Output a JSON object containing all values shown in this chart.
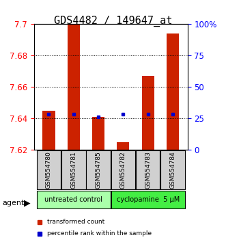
{
  "title": "GDS4482 / 149647_at",
  "samples": [
    "GSM554780",
    "GSM554781",
    "GSM554785",
    "GSM554782",
    "GSM554783",
    "GSM554784"
  ],
  "groups": [
    "untreated control",
    "untreated control",
    "untreated control",
    "cyclopamine  5 μM",
    "cyclopamine  5 μM",
    "cyclopamine  5 μM"
  ],
  "group_colors": [
    "#90ee90",
    "#90ee90",
    "#90ee90",
    "#32cd32",
    "#32cd32",
    "#32cd32"
  ],
  "red_values": [
    7.645,
    7.7,
    7.641,
    7.625,
    7.667,
    7.694
  ],
  "blue_values": [
    7.643,
    7.643,
    7.641,
    7.643,
    7.643,
    7.643
  ],
  "ymin": 7.62,
  "ymax": 7.7,
  "yticks": [
    7.62,
    7.64,
    7.66,
    7.68,
    7.7
  ],
  "ytick_labels": [
    "7.62",
    "7.64",
    "7.66",
    "7.68",
    "7.7"
  ],
  "right_yticks": [
    0,
    25,
    50,
    75,
    100
  ],
  "right_ytick_labels": [
    "0",
    "25",
    "50",
    "75",
    "100%"
  ],
  "bar_color": "#cc2200",
  "dot_color": "#0000cc",
  "bar_width": 0.5,
  "grid_color": "#000000",
  "agent_label": "agent",
  "legend_items": [
    "transformed count",
    "percentile rank within the sample"
  ],
  "legend_colors": [
    "#cc2200",
    "#0000cc"
  ],
  "group1_label": "untreated control",
  "group2_label": "cyclopamine  5 μM",
  "group1_color": "#aaffaa",
  "group2_color": "#44ee44",
  "title_fontsize": 11,
  "tick_fontsize": 8.5,
  "label_fontsize": 8
}
